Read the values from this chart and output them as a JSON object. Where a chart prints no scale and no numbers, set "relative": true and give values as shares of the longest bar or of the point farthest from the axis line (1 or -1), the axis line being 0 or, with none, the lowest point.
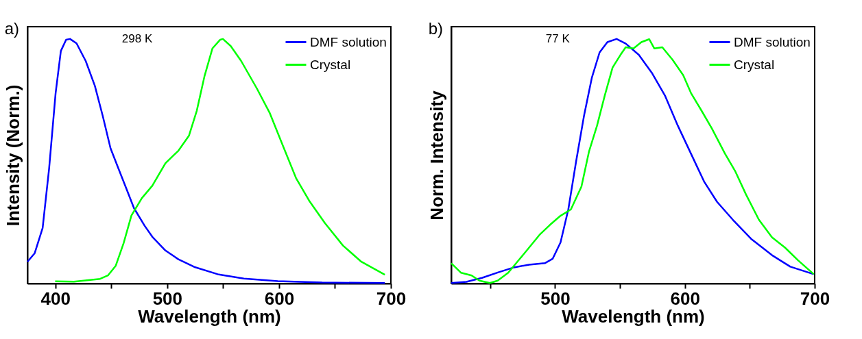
{
  "chart_data": [
    {
      "type": "line",
      "relative": true,
      "xlabel": "Wavelength (nm)",
      "ylabel": "Intensity (Norm.)",
      "annotations": [
        "a)",
        "298 K"
      ],
      "legend": "top right",
      "grid": false,
      "line_style": "solid",
      "marker": "none",
      "xlim": [
        375,
        700
      ],
      "xticks": [
        400,
        {
          "value": 450,
          "label": null
        },
        500,
        {
          "value": 550,
          "label": null
        },
        600,
        {
          "value": 650,
          "label": null
        },
        700
      ],
      "series": [
        {
          "name": "DMF solution",
          "color": "#0000ff",
          "x": [
            375,
            381.5,
            388.6,
            394.4,
            400.2,
            404.9,
            409.6,
            413.1,
            418.9,
            427.1,
            435.3,
            442.3,
            449.3,
            456.3,
            463.3,
            470.3,
            479.7,
            486.7,
            498.4,
            510.0,
            524.1,
            545.1,
            568.5,
            598.8,
            638.6,
            694.6
          ],
          "values": [
            0.089,
            0.124,
            0.227,
            0.471,
            0.778,
            0.951,
            0.997,
            1.0,
            0.982,
            0.91,
            0.808,
            0.686,
            0.553,
            0.471,
            0.39,
            0.308,
            0.237,
            0.191,
            0.135,
            0.099,
            0.068,
            0.038,
            0.02,
            0.01,
            0.004,
            0.002
          ]
        },
        {
          "name": "Crystal",
          "color": "#00ff00",
          "x": [
            399.8,
            416.6,
            440.0,
            447.0,
            454.0,
            461.0,
            468.0,
            477.3,
            486.7,
            498.4,
            510.0,
            519.4,
            526.4,
            533.4,
            540.4,
            547.4,
            549.8,
            556.8,
            566.1,
            580.1,
            591.8,
            603.5,
            615.2,
            626.9,
            641.0,
            657.2,
            673.6,
            694.6
          ],
          "values": [
            0.009,
            0.008,
            0.019,
            0.033,
            0.073,
            0.165,
            0.278,
            0.349,
            0.4,
            0.492,
            0.543,
            0.604,
            0.706,
            0.849,
            0.961,
            0.997,
            1.0,
            0.971,
            0.91,
            0.798,
            0.696,
            0.563,
            0.431,
            0.339,
            0.247,
            0.155,
            0.089,
            0.036
          ]
        }
      ]
    },
    {
      "type": "line",
      "relative": true,
      "xlabel": "Wavelength (nm)",
      "ylabel": "Norm. Intensity",
      "annotations": [
        "b)",
        "77 K"
      ],
      "legend": "top right",
      "grid": false,
      "line_style": "solid",
      "marker": "none",
      "xlim": [
        420,
        700
      ],
      "xticks": [
        {
          "value": 450,
          "label": null
        },
        500,
        {
          "value": 550,
          "label": null
        },
        600,
        {
          "value": 650,
          "label": null
        },
        700
      ],
      "series": [
        {
          "name": "DMF solution",
          "color": "#0000ff",
          "x": [
            420,
            431.7,
            443.7,
            456.3,
            468.4,
            480.0,
            492.1,
            498.1,
            504.2,
            510.2,
            516.2,
            522.3,
            528.3,
            534.3,
            540.3,
            547.4,
            554.4,
            564.5,
            574.5,
            584.6,
            594.6,
            604.7,
            614.8,
            624.8,
            636.9,
            651.0,
            667.1,
            681.2,
            699.3
          ],
          "values": [
            0.002,
            0.007,
            0.023,
            0.046,
            0.066,
            0.077,
            0.083,
            0.101,
            0.168,
            0.303,
            0.499,
            0.686,
            0.841,
            0.945,
            0.987,
            1.0,
            0.981,
            0.935,
            0.862,
            0.769,
            0.645,
            0.531,
            0.417,
            0.334,
            0.261,
            0.183,
            0.116,
            0.069,
            0.038
          ]
        },
        {
          "name": "Crystal",
          "color": "#00ff00",
          "x": [
            420,
            427.6,
            435.7,
            441.7,
            449.8,
            455.8,
            463.9,
            471.9,
            480.0,
            488.0,
            496.1,
            504.2,
            512.2,
            520.3,
            526.2,
            532.3,
            538.3,
            544.3,
            550.4,
            554.4,
            560.4,
            566.5,
            572.5,
            576.5,
            582.6,
            590.6,
            598.7,
            604.7,
            612.8,
            620.8,
            630.9,
            638.9,
            647.0,
            657.0,
            667.1,
            677.1,
            687.2,
            699.3
          ],
          "values": [
            0.083,
            0.044,
            0.033,
            0.012,
            0.002,
            0.012,
            0.044,
            0.095,
            0.147,
            0.199,
            0.24,
            0.277,
            0.303,
            0.396,
            0.541,
            0.645,
            0.769,
            0.883,
            0.935,
            0.966,
            0.961,
            0.987,
            0.999,
            0.961,
            0.966,
            0.914,
            0.852,
            0.779,
            0.707,
            0.634,
            0.531,
            0.458,
            0.365,
            0.261,
            0.189,
            0.147,
            0.095,
            0.038
          ]
        }
      ]
    }
  ]
}
